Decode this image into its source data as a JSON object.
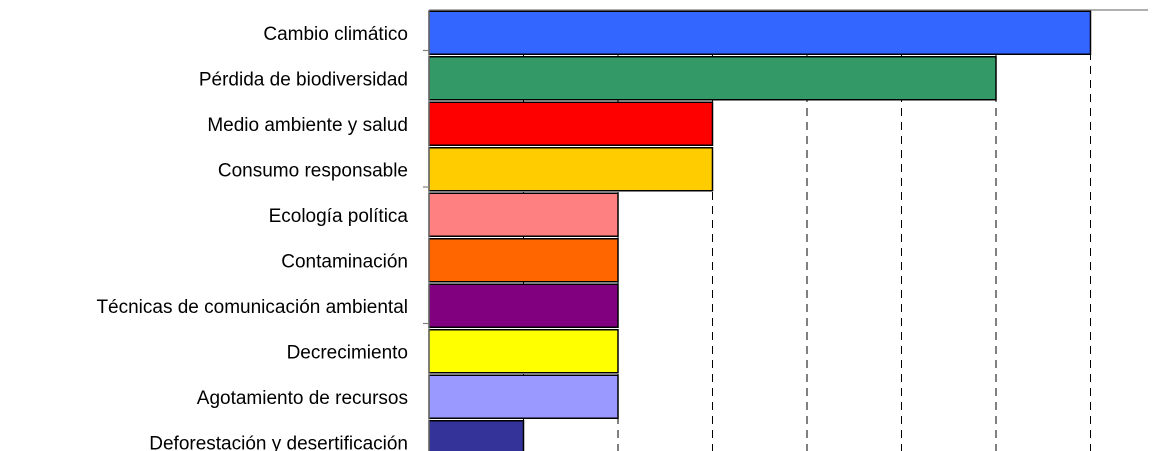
{
  "chart_data": {
    "type": "bar",
    "orientation": "horizontal",
    "title": "",
    "xlabel": "",
    "ylabel": "",
    "xlim": [
      0,
      7
    ],
    "grid": "vertical dashed",
    "categories": [
      "Cambio climático",
      "Pérdida de biodiversidad",
      "Medio ambiente y salud",
      "Consumo responsable",
      "Ecología política",
      "Contaminación",
      "Técnicas de comunicación ambiental",
      "Decrecimiento",
      "Agotamiento de recursos",
      "Deforestación y desertificación"
    ],
    "values": [
      7,
      6,
      3,
      3,
      2,
      2,
      2,
      2,
      2,
      1
    ],
    "colors": [
      "#3366ff",
      "#339966",
      "#ff0000",
      "#ffcc00",
      "#ff8080",
      "#ff6600",
      "#800080",
      "#ffff00",
      "#9999ff",
      "#333399"
    ]
  }
}
